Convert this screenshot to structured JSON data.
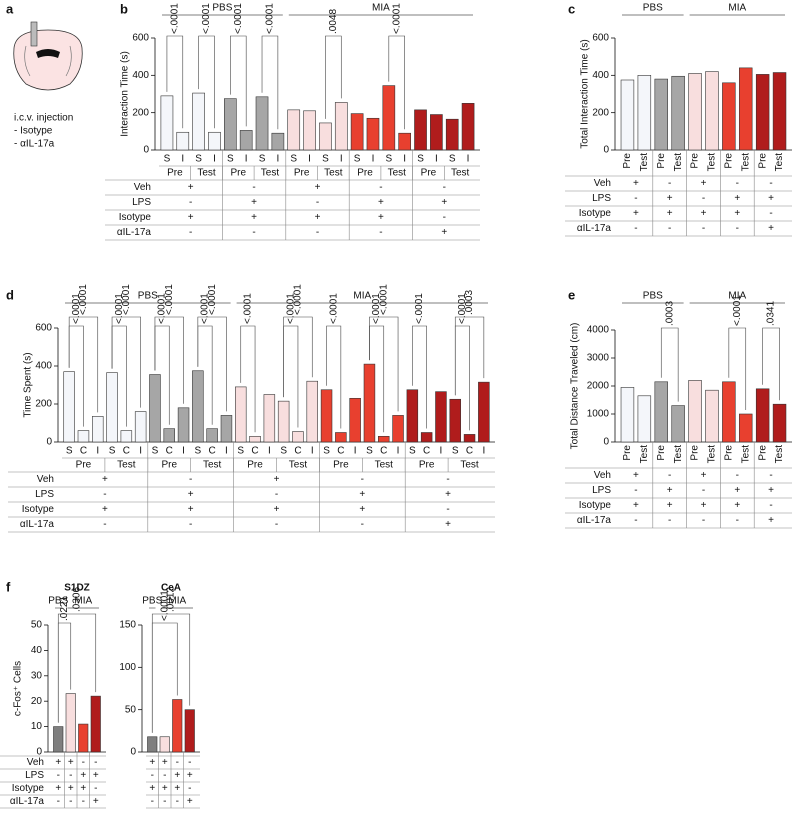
{
  "illustration": {
    "panel": "a",
    "lines": [
      "i.c.v. injection",
      "- Isotype",
      "- αIL-17a"
    ]
  },
  "chart_data": [
    {
      "type": "bar",
      "panel": "b",
      "y_label": "Interaction Time (s)",
      "ylim": [
        0,
        600
      ],
      "yticks": [
        0,
        200,
        400,
        600
      ],
      "group_headers": [
        "PBS",
        "MIA"
      ],
      "group_colors": [
        "#f4f6fa",
        "#a6a6a6",
        "#f8dede",
        "#e8402f",
        "#b01c1c"
      ],
      "sub_labels": [
        "S",
        "I",
        "S",
        "I",
        "S",
        "I",
        "S",
        "I",
        "S",
        "I",
        "S",
        "I",
        "S",
        "I",
        "S",
        "I",
        "S",
        "I",
        "S",
        "I"
      ],
      "phase_labels": [
        "Pre",
        "Test",
        "Pre",
        "Test",
        "Pre",
        "Test",
        "Pre",
        "Test",
        "Pre",
        "Test"
      ],
      "values": [
        290,
        95,
        305,
        95,
        275,
        105,
        285,
        90,
        215,
        210,
        145,
        255,
        195,
        170,
        345,
        90,
        215,
        190,
        165,
        250
      ],
      "pvalues": [
        "<.0001",
        "<.0001",
        "<.0001",
        "<.0001",
        ".0048",
        "<.0001"
      ],
      "conditions": {
        "row_labels": [
          "Veh",
          "LPS",
          "Isotype",
          "αIL-17a"
        ],
        "cells": [
          [
            "+",
            "-",
            "+",
            "-",
            "-"
          ],
          [
            "-",
            "+",
            "-",
            "+",
            "+"
          ],
          [
            "+",
            "+",
            "+",
            "+",
            "-"
          ],
          [
            "-",
            "-",
            "-",
            "-",
            "+"
          ]
        ]
      }
    },
    {
      "type": "bar",
      "panel": "c",
      "y_label": "Total Interaction Time (s)",
      "ylim": [
        0,
        600
      ],
      "yticks": [
        0,
        200,
        400,
        600
      ],
      "group_headers": [
        "PBS",
        "MIA"
      ],
      "group_colors": [
        "#f4f6fa",
        "#a6a6a6",
        "#f8dede",
        "#e8402f",
        "#b01c1c"
      ],
      "sub_labels": [
        "Pre",
        "Test",
        "Pre",
        "Test",
        "Pre",
        "Test",
        "Pre",
        "Test",
        "Pre",
        "Test"
      ],
      "values": [
        375,
        400,
        380,
        395,
        410,
        420,
        360,
        440,
        405,
        415
      ],
      "conditions": {
        "row_labels": [
          "Veh",
          "LPS",
          "Isotype",
          "αIL-17a"
        ],
        "cells": [
          [
            "+",
            "-",
            "+",
            "-",
            "-"
          ],
          [
            "-",
            "+",
            "-",
            "+",
            "+"
          ],
          [
            "+",
            "+",
            "+",
            "+",
            "-"
          ],
          [
            "-",
            "-",
            "-",
            "-",
            "+"
          ]
        ]
      }
    },
    {
      "type": "bar",
      "panel": "d",
      "y_label": "Time Spent (s)",
      "ylim": [
        0,
        600
      ],
      "yticks": [
        0,
        200,
        400,
        600
      ],
      "group_headers": [
        "PBS",
        "MIA"
      ],
      "group_colors": [
        "#f4f6fa",
        "#a6a6a6",
        "#f8dede",
        "#e8402f",
        "#b01c1c"
      ],
      "sub_labels": [
        "S",
        "C",
        "I",
        "S",
        "C",
        "I",
        "S",
        "C",
        "I",
        "S",
        "C",
        "I",
        "S",
        "C",
        "I",
        "S",
        "C",
        "I",
        "S",
        "C",
        "I",
        "S",
        "C",
        "I",
        "S",
        "C",
        "I",
        "S",
        "C",
        "I"
      ],
      "phase_labels": [
        "Pre",
        "Test",
        "Pre",
        "Test",
        "Pre",
        "Test",
        "Pre",
        "Test",
        "Pre",
        "Test"
      ],
      "values": [
        370,
        60,
        135,
        365,
        60,
        160,
        355,
        70,
        180,
        375,
        70,
        140,
        290,
        30,
        250,
        215,
        55,
        320,
        275,
        50,
        230,
        410,
        30,
        140,
        275,
        50,
        265,
        225,
        40,
        315
      ],
      "pvalues": [
        "<.0001",
        "<.0001",
        "<.0001",
        "<.0001",
        "<.0001",
        "<.0001",
        "<.0001",
        "<.0001",
        "<.0001",
        "<.0001",
        "<.0001",
        "<.0001",
        "<.0001",
        "<.0001",
        "<.0001",
        "<.0001",
        ".0003"
      ],
      "conditions": {
        "row_labels": [
          "Veh",
          "LPS",
          "Isotype",
          "αIL-17a"
        ],
        "cells": [
          [
            "+",
            "-",
            "+",
            "-",
            "-"
          ],
          [
            "-",
            "+",
            "-",
            "+",
            "+"
          ],
          [
            "+",
            "+",
            "+",
            "+",
            "-"
          ],
          [
            "-",
            "-",
            "-",
            "-",
            "+"
          ]
        ]
      }
    },
    {
      "type": "bar",
      "panel": "e",
      "y_label": "Total Distance Traveled (cm)",
      "ylim": [
        0,
        4000
      ],
      "yticks": [
        0,
        1000,
        2000,
        3000,
        4000
      ],
      "group_headers": [
        "PBS",
        "MIA"
      ],
      "group_colors": [
        "#f4f6fa",
        "#a6a6a6",
        "#f8dede",
        "#e8402f",
        "#b01c1c"
      ],
      "sub_labels": [
        "Pre",
        "Test",
        "Pre",
        "Test",
        "Pre",
        "Test",
        "Pre",
        "Test",
        "Pre",
        "Test"
      ],
      "values": [
        1950,
        1650,
        2150,
        1300,
        2200,
        1850,
        2150,
        1000,
        1900,
        1350
      ],
      "pvalues": [
        ".0003",
        "<.0001",
        ".0341"
      ],
      "conditions": {
        "row_labels": [
          "Veh",
          "LPS",
          "Isotype",
          "αIL-17a"
        ],
        "cells": [
          [
            "+",
            "-",
            "+",
            "-",
            "-"
          ],
          [
            "-",
            "+",
            "-",
            "+",
            "+"
          ],
          [
            "+",
            "+",
            "+",
            "+",
            "-"
          ],
          [
            "-",
            "-",
            "-",
            "-",
            "+"
          ]
        ]
      }
    },
    {
      "type": "bar",
      "panel": "f",
      "title": "S1DZ",
      "y_label": "c-Fos⁺ Cells",
      "ylim": [
        0,
        50
      ],
      "yticks": [
        0,
        10,
        20,
        30,
        40,
        50
      ],
      "group_headers": [
        "PBS",
        "MIA"
      ],
      "group_colors": [
        "#7f7f7f",
        "#f8dede",
        "#e8402f",
        "#b01c1c"
      ],
      "values": [
        10,
        23,
        11,
        22
      ],
      "pvalues": [
        ".0221",
        ".0306"
      ],
      "conditions": {
        "row_labels": [
          "Veh",
          "LPS",
          "Isotype",
          "αIL-17a"
        ],
        "cells": [
          [
            "+",
            "+",
            "-",
            "-"
          ],
          [
            "-",
            "-",
            "+",
            "+"
          ],
          [
            "+",
            "+",
            "+",
            "-"
          ],
          [
            "-",
            "-",
            "-",
            "+"
          ]
        ]
      }
    },
    {
      "type": "bar",
      "title": "CeA",
      "ylim": [
        0,
        150
      ],
      "yticks": [
        0,
        50,
        100,
        150
      ],
      "group_headers": [
        "PBS",
        "MIA"
      ],
      "group_colors": [
        "#7f7f7f",
        "#f8dede",
        "#e8402f",
        "#b01c1c"
      ],
      "values": [
        18,
        18,
        62,
        50
      ],
      "pvalues": [
        "<.0001",
        ".0012"
      ],
      "conditions": {
        "cells": [
          [
            "+",
            "+",
            "-",
            "-"
          ],
          [
            "-",
            "-",
            "+",
            "+"
          ],
          [
            "+",
            "+",
            "+",
            "-"
          ],
          [
            "-",
            "-",
            "-",
            "+"
          ]
        ]
      }
    }
  ]
}
